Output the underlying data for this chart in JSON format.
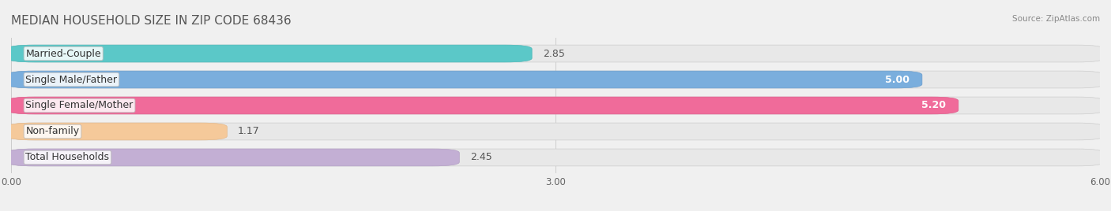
{
  "title": "MEDIAN HOUSEHOLD SIZE IN ZIP CODE 68436",
  "source": "Source: ZipAtlas.com",
  "categories": [
    "Married-Couple",
    "Single Male/Father",
    "Single Female/Mother",
    "Non-family",
    "Total Households"
  ],
  "values": [
    2.85,
    5.0,
    5.2,
    1.17,
    2.45
  ],
  "bar_colors": [
    "#5bc8c8",
    "#7aaedd",
    "#f06b9a",
    "#f5c99a",
    "#c3afd4"
  ],
  "bar_edge_colors": [
    "#4ab8b8",
    "#6a9ecd",
    "#e05b8a",
    "#e5b98a",
    "#b39fc4"
  ],
  "xlim": [
    0,
    6.0
  ],
  "xticks": [
    0.0,
    3.0,
    6.0
  ],
  "xtick_labels": [
    "0.00",
    "3.00",
    "6.00"
  ],
  "label_fontsize": 9,
  "value_fontsize": 9,
  "title_fontsize": 11,
  "background_color": "#f0f0f0",
  "bar_background": "#e8e8e8"
}
